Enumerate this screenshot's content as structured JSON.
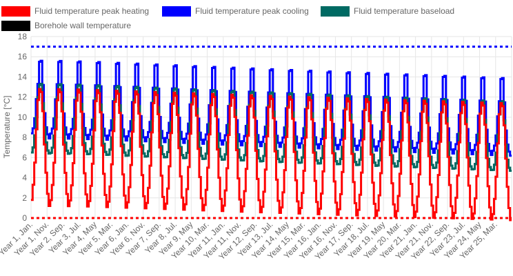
{
  "chart_data": {
    "type": "line",
    "ylabel": "Temperature [°C]",
    "ylim": [
      0,
      18
    ],
    "y_ticks": [
      0,
      2,
      4,
      6,
      8,
      10,
      12,
      14,
      16,
      18
    ],
    "x_tick_labels": [
      "Year 1, Jan.",
      "Year 1, Nov.",
      "Year 2, Sep.",
      "Year 3, Jul.",
      "Year 4, May",
      "Year 5, Mar.",
      "Year 6, Jan.",
      "Year 6, Nov.",
      "Year 7, Sep.",
      "Year 8, Jul.",
      "Year 9, May",
      "Year 10, Mar.",
      "Year 11, Jan.",
      "Year 11, Nov.",
      "Year 12, Sep.",
      "Year 13, Jul.",
      "Year 14, May",
      "Year 15, Mar.",
      "Year 16, Jan.",
      "Year 16, Nov.",
      "Year 17, Sep.",
      "Year 18, Jul.",
      "Year 19, May",
      "Year 20, Mar.",
      "Year 21, Jan.",
      "Year 21, Nov.",
      "Year 22, Sep.",
      "Year 23, Jul.",
      "Year 24, May",
      "Year 25, Mar."
    ],
    "grid": true,
    "legend_position": "top-left",
    "monthly_profile_year1": {
      "peak_heating": [
        1.8,
        3.3,
        5.5,
        8.8,
        11.7,
        12.8,
        12.5,
        10.6,
        7.3,
        4.5,
        2.4,
        1.2
      ],
      "peak_cooling": [
        8.4,
        8.9,
        9.9,
        11.8,
        13.3,
        15.5,
        15.6,
        13.2,
        10.4,
        9.0,
        8.3,
        7.9
      ],
      "baseload": [
        6.5,
        7.0,
        8.2,
        10.0,
        12.0,
        13.2,
        13.3,
        11.4,
        9.0,
        7.5,
        6.7,
        6.4
      ]
    },
    "annual_drift": {
      "peak_heating": -0.045,
      "peak_cooling": -0.055,
      "baseload": -0.055
    },
    "series": [
      {
        "name": "Fluid temperature peak heating",
        "color": "#ff0000",
        "style": "solid",
        "profile": "peak_heating"
      },
      {
        "name": "Fluid temperature peak cooling",
        "color": "#0000ff",
        "style": "solid",
        "profile": "peak_cooling"
      },
      {
        "name": "Fluid temperature baseload",
        "color": "#006a63",
        "style": "solid",
        "profile": "baseload"
      },
      {
        "name": "Borehole wall temperature",
        "color": "#000000",
        "style": "solid",
        "profile": "baseload"
      }
    ],
    "limits": [
      {
        "value": 17,
        "color": "#0000ff",
        "style": "dashed"
      },
      {
        "value": 0,
        "color": "#ff0000",
        "style": "dashed"
      }
    ],
    "months": 300
  }
}
